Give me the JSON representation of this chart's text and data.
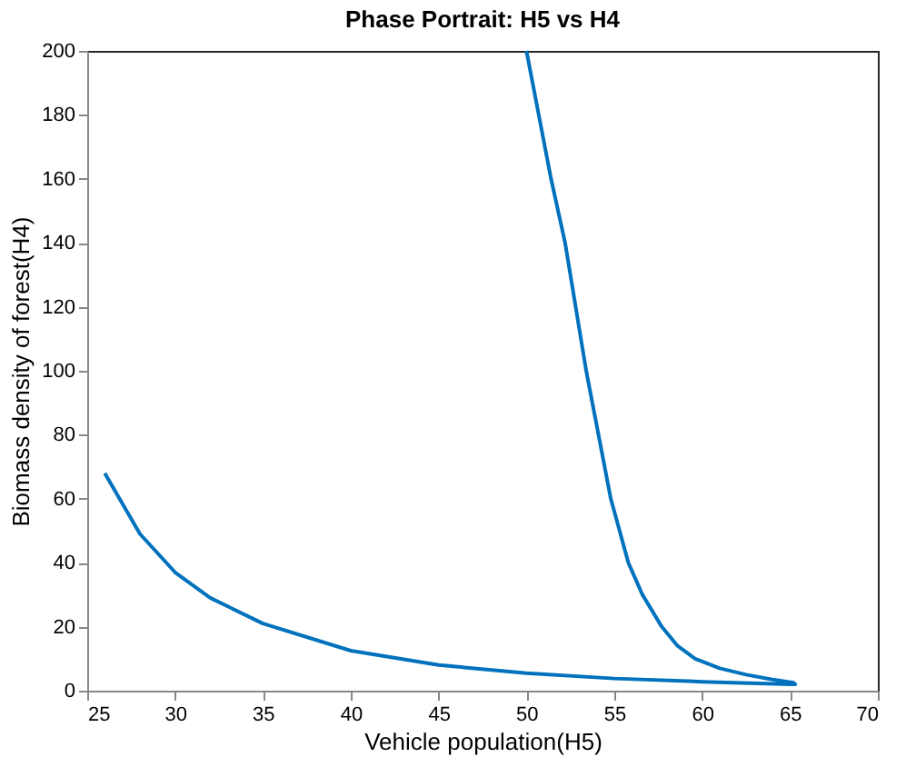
{
  "chart_data": {
    "type": "line",
    "title": "Phase Portrait: H5 vs H4",
    "xlabel": "Vehicle population(H5)",
    "ylabel": "Biomass density of forest(H4)",
    "x": [
      50,
      50.7,
      51.4,
      52.2,
      52.8,
      53.4,
      54.1,
      54.8,
      55.8,
      56.6,
      57.7,
      58.6,
      59.6,
      61,
      62.5,
      64,
      65.2,
      65.3,
      65,
      60,
      55,
      50,
      45,
      40,
      35,
      32,
      30,
      28,
      26
    ],
    "series": [
      {
        "color": "#0072bd",
        "values": [
          200,
          180,
          160,
          140,
          120,
          100,
          80,
          60,
          40,
          30,
          20,
          14,
          10,
          7,
          5,
          3.5,
          2.5,
          2,
          2,
          2.8,
          3.8,
          5.5,
          8,
          12.5,
          21,
          29,
          37,
          49,
          68
        ]
      }
    ],
    "xlim": [
      25,
      70
    ],
    "xticks": [
      25,
      30,
      35,
      40,
      45,
      50,
      55,
      60,
      65,
      70
    ],
    "ylim": [
      0,
      200
    ],
    "yticks": [
      0,
      20,
      40,
      60,
      80,
      100,
      120,
      140,
      160,
      180,
      200
    ],
    "grid": false,
    "legend": false,
    "marker": "none",
    "line_style": "solid"
  }
}
